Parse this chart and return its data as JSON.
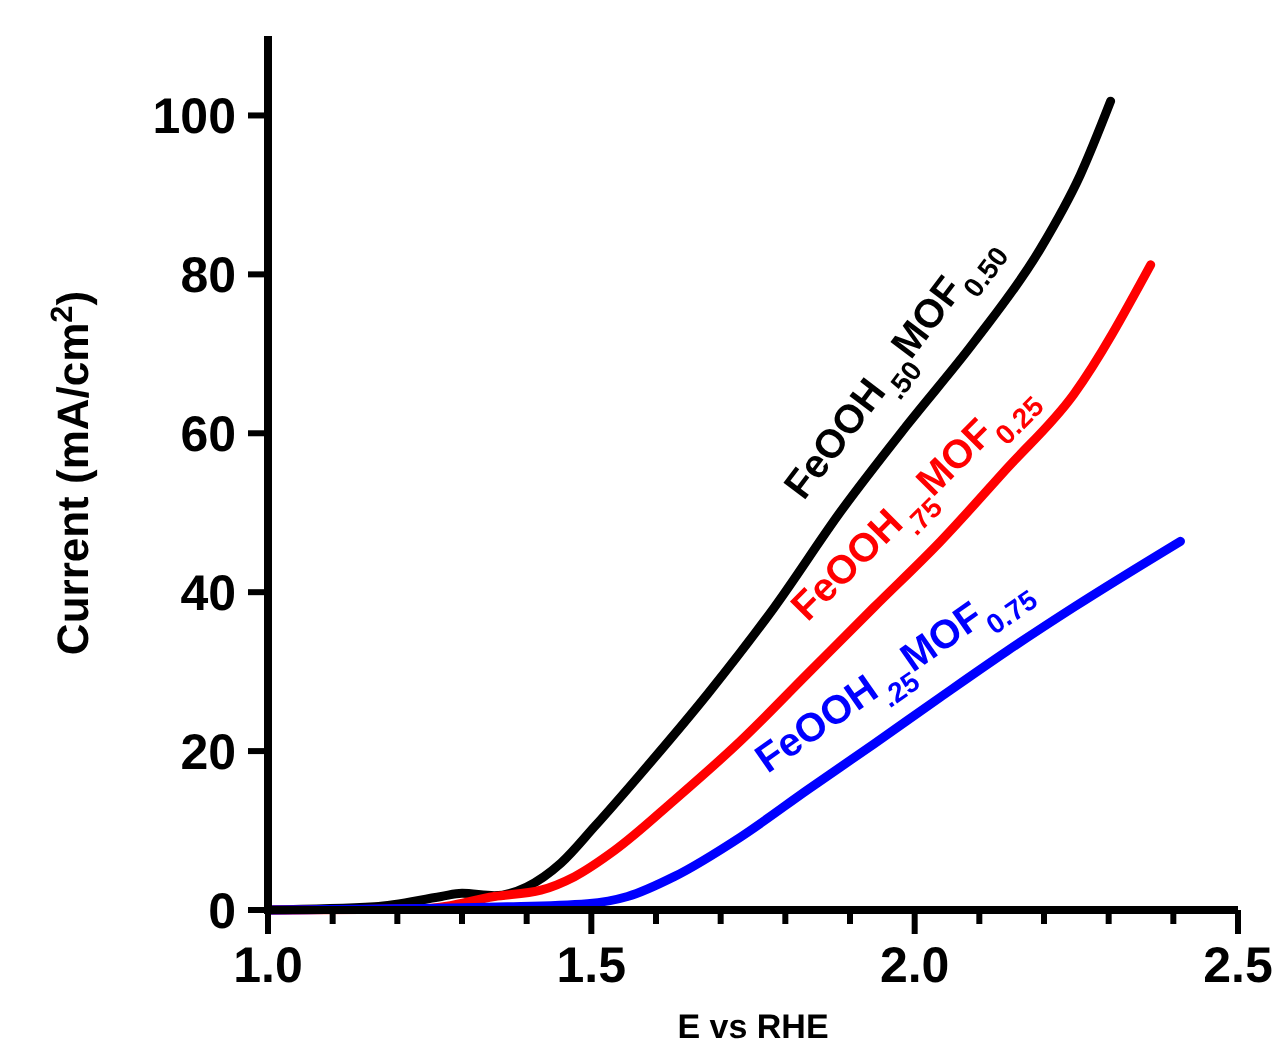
{
  "chart_data": {
    "type": "line",
    "xlabel": "E vs RHE",
    "ylabel": "Current (mA/cm$^{2}$)",
    "xlim": [
      1,
      2.5
    ],
    "ylim": [
      0,
      110
    ],
    "xticks": [
      {
        "value": 1,
        "label": "1.0"
      },
      {
        "value": 1.1,
        "label": null
      },
      {
        "value": 1.2,
        "label": null
      },
      {
        "value": 1.3,
        "label": null
      },
      {
        "value": 1.4,
        "label": null
      },
      {
        "value": 1.5,
        "label": "1.5"
      },
      {
        "value": 1.6,
        "label": null
      },
      {
        "value": 1.7,
        "label": null
      },
      {
        "value": 1.8,
        "label": null
      },
      {
        "value": 1.9,
        "label": null
      },
      {
        "value": 2,
        "label": "2.0"
      },
      {
        "value": 2.1,
        "label": null
      },
      {
        "value": 2.2,
        "label": null
      },
      {
        "value": 2.3,
        "label": null
      },
      {
        "value": 2.4,
        "label": null
      },
      {
        "value": 2.5,
        "label": "2.5"
      }
    ],
    "yticks": [
      0,
      20,
      40,
      60,
      80,
      100
    ],
    "grid": false,
    "marker": "none",
    "line_style": "solid",
    "series": [
      {
        "name": "FeOOH$_{.50}$MOF$_{0.50}$",
        "color": "#000000",
        "x": [
          1.0,
          1.165,
          1.268,
          1.3,
          1.35,
          1.4,
          1.453,
          1.505,
          1.577,
          1.68,
          1.783,
          1.886,
          1.989,
          2.092,
          2.195,
          2.256,
          2.303
        ],
        "values": [
          0,
          0.4,
          1.7,
          2.1,
          1.8,
          2.9,
          5.9,
          10.5,
          17.2,
          27.2,
          38.1,
          50.2,
          61.1,
          71.5,
          83.3,
          92.5,
          101.8
        ]
      },
      {
        "name": "FeOOH$_{.75}$MOF$_{0.25}$",
        "color": "#ff0000",
        "x": [
          1.0,
          1.247,
          1.35,
          1.422,
          1.474,
          1.536,
          1.628,
          1.731,
          1.834,
          1.937,
          2.04,
          2.143,
          2.246,
          2.365
        ],
        "values": [
          0,
          0.2,
          1.7,
          2.5,
          4.2,
          7.5,
          13.8,
          21.3,
          29.7,
          38.1,
          46.4,
          55.6,
          64.9,
          81.2
        ]
      },
      {
        "name": "FeOOH$_{.25}$MOF$_{0.75}$",
        "color": "#0000ff",
        "x": [
          1.0,
          1.37,
          1.494,
          1.556,
          1.628,
          1.731,
          1.834,
          1.937,
          2.04,
          2.143,
          2.246,
          2.411
        ],
        "values": [
          0,
          0.4,
          0.8,
          1.7,
          4.2,
          9.2,
          15.1,
          20.9,
          26.8,
          32.6,
          38.1,
          46.4
        ]
      }
    ]
  }
}
